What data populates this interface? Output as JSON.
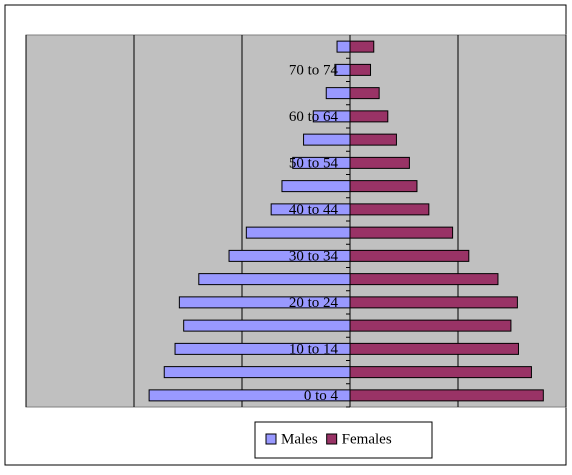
{
  "chart_data": {
    "type": "pyramid",
    "categories": [
      "0 to 4",
      null,
      "10 to 14",
      null,
      "20 to 24",
      null,
      "30 to 34",
      null,
      "40 to 44",
      null,
      "50 to 54",
      null,
      "60 to 64",
      null,
      "70 to 74",
      null
    ],
    "series": [
      {
        "name": "Males",
        "color": "#9999ff",
        "values": [
          -1.86,
          -1.72,
          -1.62,
          -1.54,
          -1.58,
          -1.4,
          -1.12,
          -0.96,
          -0.73,
          -0.63,
          -0.53,
          -0.43,
          -0.34,
          -0.22,
          -0.14,
          -0.12
        ]
      },
      {
        "name": "Females",
        "color": "#993366",
        "values": [
          1.79,
          1.68,
          1.56,
          1.49,
          1.55,
          1.37,
          1.1,
          0.95,
          0.73,
          0.62,
          0.55,
          0.43,
          0.35,
          0.27,
          0.19,
          0.22
        ]
      }
    ],
    "xlim": [
      -3,
      2
    ],
    "xticks": [
      -3,
      -2,
      -1,
      0,
      1,
      2
    ],
    "grid": true,
    "legend": "bottom"
  }
}
